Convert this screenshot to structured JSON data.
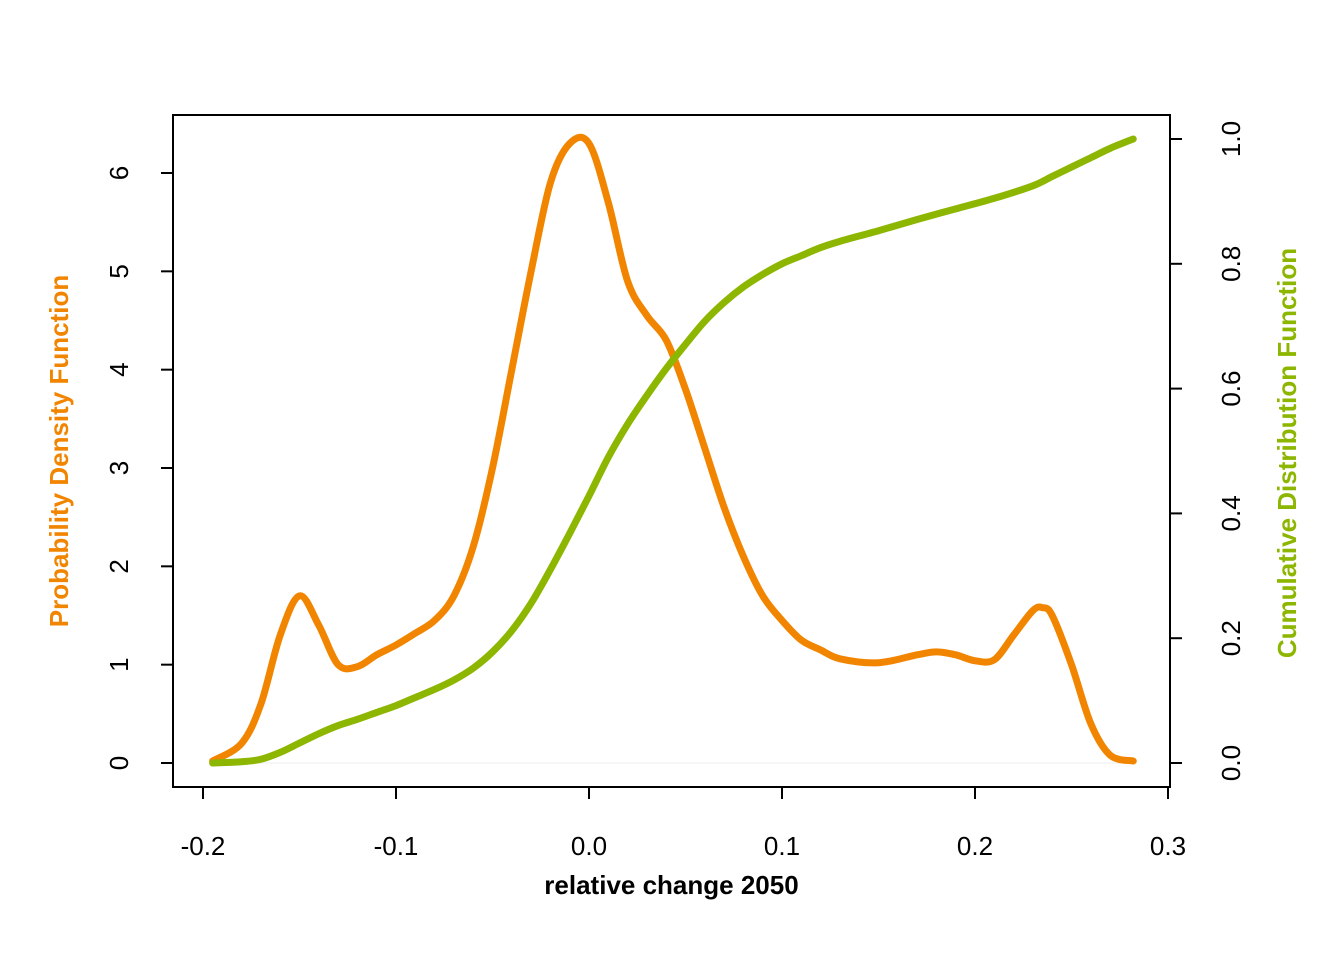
{
  "chart_data": {
    "type": "line",
    "title": "",
    "xlabel": "relative change 2050",
    "ylabel_left": "Probability Density Function",
    "ylabel_right": "Cumulative Distribution Function",
    "xlim": [
      -0.2,
      0.3
    ],
    "ylim_left": [
      0,
      6.5
    ],
    "ylim_right": [
      0,
      1.0
    ],
    "x_ticks": [
      -0.2,
      -0.1,
      0.0,
      0.1,
      0.2,
      0.3
    ],
    "x_tick_labels": [
      "-0.2",
      "-0.1",
      "0.0",
      "0.1",
      "0.2",
      "0.3"
    ],
    "y_left_ticks": [
      0,
      1,
      2,
      3,
      4,
      5,
      6
    ],
    "y_left_tick_labels": [
      "0",
      "1",
      "2",
      "3",
      "4",
      "5",
      "6"
    ],
    "y_right_ticks": [
      0.0,
      0.2,
      0.4,
      0.6,
      0.8,
      1.0
    ],
    "y_right_tick_labels": [
      "0.0",
      "0.2",
      "0.4",
      "0.6",
      "0.8",
      "1.0"
    ],
    "grid": false,
    "legend": "none",
    "series": [
      {
        "name": "Probability Density Function",
        "axis": "left",
        "color": "#F28500",
        "x": [
          -0.195,
          -0.18,
          -0.17,
          -0.16,
          -0.15,
          -0.14,
          -0.13,
          -0.12,
          -0.11,
          -0.1,
          -0.09,
          -0.08,
          -0.07,
          -0.06,
          -0.05,
          -0.04,
          -0.03,
          -0.02,
          -0.01,
          0.0,
          0.01,
          0.02,
          0.03,
          0.04,
          0.05,
          0.06,
          0.07,
          0.08,
          0.09,
          0.1,
          0.11,
          0.12,
          0.13,
          0.15,
          0.17,
          0.18,
          0.19,
          0.2,
          0.21,
          0.22,
          0.23,
          0.235,
          0.24,
          0.25,
          0.26,
          0.27,
          0.282
        ],
        "y": [
          0.02,
          0.2,
          0.6,
          1.3,
          1.7,
          1.4,
          1.0,
          0.98,
          1.1,
          1.2,
          1.32,
          1.45,
          1.7,
          2.2,
          3.0,
          4.0,
          5.0,
          5.9,
          6.3,
          6.3,
          5.7,
          4.9,
          4.55,
          4.3,
          3.8,
          3.2,
          2.6,
          2.1,
          1.7,
          1.45,
          1.25,
          1.15,
          1.06,
          1.02,
          1.1,
          1.13,
          1.1,
          1.04,
          1.05,
          1.3,
          1.55,
          1.58,
          1.5,
          1.0,
          0.4,
          0.08,
          0.02
        ]
      },
      {
        "name": "Cumulative Distribution Function",
        "axis": "right",
        "color": "#8DB600",
        "x": [
          -0.195,
          -0.18,
          -0.17,
          -0.16,
          -0.15,
          -0.14,
          -0.13,
          -0.12,
          -0.11,
          -0.1,
          -0.09,
          -0.08,
          -0.07,
          -0.06,
          -0.05,
          -0.04,
          -0.03,
          -0.02,
          -0.01,
          0.0,
          0.01,
          0.02,
          0.03,
          0.04,
          0.05,
          0.06,
          0.07,
          0.08,
          0.09,
          0.1,
          0.11,
          0.12,
          0.13,
          0.15,
          0.17,
          0.19,
          0.21,
          0.23,
          0.24,
          0.25,
          0.26,
          0.27,
          0.282
        ],
        "y": [
          0.0,
          0.002,
          0.006,
          0.017,
          0.032,
          0.047,
          0.06,
          0.07,
          0.081,
          0.092,
          0.105,
          0.118,
          0.133,
          0.152,
          0.178,
          0.212,
          0.256,
          0.31,
          0.368,
          0.428,
          0.49,
          0.543,
          0.589,
          0.632,
          0.671,
          0.708,
          0.738,
          0.763,
          0.783,
          0.8,
          0.813,
          0.826,
          0.836,
          0.853,
          0.871,
          0.888,
          0.905,
          0.925,
          0.94,
          0.955,
          0.97,
          0.985,
          1.0
        ]
      }
    ]
  }
}
